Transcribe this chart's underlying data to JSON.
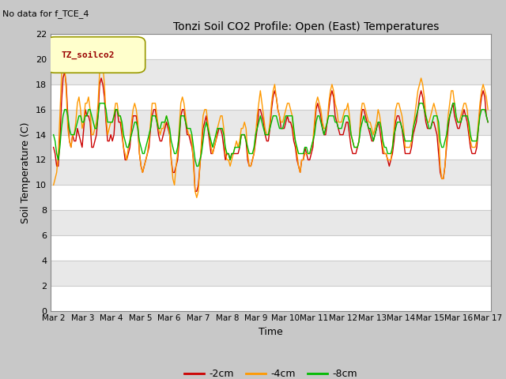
{
  "title": "Tonzi Soil CO2 Profile: Open (East) Temperatures",
  "subtitle": "No data for f_TCE_4",
  "ylabel": "Soil Temperature (C)",
  "xlabel": "Time",
  "legend_label": "TZ_soilco2",
  "ylim": [
    0,
    22
  ],
  "yticks": [
    0,
    2,
    4,
    6,
    8,
    10,
    12,
    14,
    16,
    18,
    20,
    22
  ],
  "series_labels": [
    "-2cm",
    "-4cm",
    "-8cm"
  ],
  "series_colors": [
    "#cc0000",
    "#ff9900",
    "#00bb00"
  ],
  "x_start": 2.0,
  "x_end": 17.0,
  "xtick_positions": [
    2,
    3,
    4,
    5,
    6,
    7,
    8,
    9,
    10,
    11,
    12,
    13,
    14,
    15,
    16,
    17
  ],
  "xtick_labels": [
    "Mar 2",
    "Mar 3",
    "Mar 4",
    "Mar 5",
    "Mar 6",
    "Mar 7",
    "Mar 8",
    "Mar 9",
    "Mar 10",
    "Mar 11",
    "Mar 12",
    "Mar 13",
    "Mar 14",
    "Mar 15",
    "Mar 16",
    "Mar 17"
  ],
  "band_color_light": "#f0f0f0",
  "band_color_dark": "#e0e0e0",
  "fig_bg": "#c8c8c8",
  "plot_bg": "#e8e8e8",
  "t2cm": [
    13.0,
    12.5,
    11.5,
    11.5,
    13.5,
    16.5,
    18.5,
    19.0,
    18.0,
    15.5,
    13.5,
    13.0,
    14.0,
    13.5,
    13.5,
    14.5,
    14.0,
    13.5,
    13.0,
    14.5,
    16.0,
    15.5,
    15.5,
    15.0,
    13.0,
    13.0,
    13.5,
    14.0,
    15.5,
    18.0,
    18.5,
    18.0,
    17.0,
    15.0,
    13.5,
    13.5,
    14.0,
    13.5,
    14.0,
    16.0,
    16.0,
    15.0,
    15.0,
    14.0,
    13.0,
    12.0,
    12.0,
    12.5,
    13.0,
    14.5,
    15.5,
    15.5,
    15.5,
    14.5,
    12.5,
    11.5,
    11.0,
    11.5,
    12.0,
    12.5,
    13.0,
    14.5,
    15.5,
    16.0,
    16.0,
    15.0,
    14.0,
    13.5,
    13.5,
    14.0,
    14.5,
    15.0,
    14.5,
    14.0,
    12.0,
    11.0,
    11.0,
    11.5,
    12.0,
    13.5,
    15.5,
    16.0,
    16.0,
    15.0,
    14.0,
    14.0,
    13.5,
    13.0,
    12.0,
    9.5,
    9.5,
    10.0,
    11.5,
    13.0,
    14.5,
    15.0,
    15.5,
    14.5,
    13.5,
    12.5,
    12.5,
    13.0,
    13.5,
    14.0,
    14.5,
    14.5,
    14.0,
    13.0,
    12.0,
    12.5,
    12.5,
    12.0,
    12.5,
    12.5,
    12.5,
    12.5,
    12.5,
    13.0,
    14.0,
    14.0,
    14.0,
    13.5,
    12.0,
    11.5,
    11.5,
    12.0,
    12.5,
    13.5,
    14.5,
    16.0,
    16.0,
    15.5,
    15.0,
    14.0,
    13.5,
    13.5,
    14.5,
    16.0,
    17.0,
    17.5,
    17.0,
    16.0,
    15.5,
    14.5,
    14.5,
    14.5,
    15.0,
    15.5,
    15.0,
    15.0,
    14.5,
    13.5,
    13.0,
    12.0,
    11.5,
    11.0,
    12.0,
    12.0,
    13.0,
    12.5,
    12.0,
    12.0,
    12.5,
    13.0,
    14.5,
    16.0,
    16.5,
    16.0,
    15.5,
    14.5,
    14.0,
    14.0,
    15.0,
    16.0,
    17.0,
    17.5,
    17.0,
    15.5,
    15.0,
    14.5,
    14.0,
    14.0,
    14.0,
    14.5,
    15.0,
    15.0,
    14.0,
    13.0,
    12.5,
    12.5,
    12.5,
    13.0,
    13.5,
    15.0,
    16.0,
    16.0,
    15.5,
    15.0,
    14.5,
    14.0,
    13.5,
    13.5,
    14.0,
    14.5,
    15.0,
    14.5,
    13.5,
    12.5,
    12.5,
    12.5,
    12.0,
    11.5,
    12.0,
    12.5,
    13.5,
    15.0,
    15.5,
    15.5,
    15.0,
    14.5,
    13.5,
    12.5,
    12.5,
    12.5,
    12.5,
    13.0,
    14.0,
    14.5,
    15.0,
    16.0,
    17.0,
    17.5,
    17.0,
    16.0,
    15.0,
    14.5,
    14.5,
    14.5,
    15.0,
    15.0,
    14.5,
    14.0,
    12.5,
    11.0,
    10.5,
    10.5,
    11.5,
    13.0,
    14.5,
    15.5,
    16.0,
    16.5,
    15.5,
    15.0,
    14.5,
    14.5,
    15.0,
    15.5,
    16.0,
    15.5,
    15.0,
    14.0,
    13.0,
    12.5,
    12.5,
    12.5,
    13.0,
    14.5,
    16.0,
    17.0,
    17.5,
    17.0,
    15.5,
    15.0
  ],
  "t4cm": [
    10.0,
    10.5,
    11.0,
    12.5,
    15.5,
    18.5,
    20.5,
    19.5,
    17.5,
    14.5,
    13.5,
    13.0,
    14.0,
    14.0,
    15.0,
    16.5,
    17.0,
    16.0,
    14.5,
    15.0,
    16.5,
    16.5,
    17.0,
    16.0,
    14.0,
    14.0,
    14.5,
    15.0,
    16.5,
    19.0,
    19.5,
    19.5,
    18.0,
    15.5,
    14.0,
    14.5,
    15.0,
    15.0,
    15.5,
    16.5,
    16.5,
    15.5,
    15.5,
    14.5,
    13.0,
    12.5,
    12.0,
    13.0,
    13.5,
    15.0,
    16.0,
    16.5,
    16.0,
    15.0,
    12.5,
    11.5,
    11.0,
    11.5,
    12.0,
    12.5,
    13.5,
    15.0,
    16.5,
    16.5,
    16.5,
    15.5,
    14.5,
    14.0,
    14.5,
    14.5,
    15.0,
    15.5,
    15.0,
    14.0,
    12.0,
    10.5,
    10.0,
    11.5,
    12.5,
    14.5,
    16.5,
    17.0,
    16.5,
    15.5,
    14.5,
    14.0,
    14.0,
    13.5,
    11.5,
    9.5,
    9.0,
    9.5,
    11.5,
    13.5,
    15.5,
    16.0,
    16.0,
    15.0,
    14.0,
    13.0,
    12.5,
    13.0,
    13.5,
    14.5,
    15.0,
    15.5,
    15.5,
    14.5,
    12.5,
    12.0,
    12.0,
    11.5,
    12.0,
    12.5,
    13.0,
    13.5,
    13.0,
    13.5,
    14.5,
    14.5,
    15.0,
    14.5,
    12.5,
    11.5,
    11.5,
    12.0,
    12.5,
    14.0,
    15.5,
    16.5,
    17.5,
    16.5,
    15.5,
    14.5,
    14.0,
    14.0,
    15.0,
    16.5,
    17.5,
    18.0,
    17.0,
    16.0,
    15.5,
    15.0,
    15.0,
    15.5,
    16.0,
    16.5,
    16.5,
    16.0,
    15.5,
    14.0,
    13.5,
    12.5,
    11.5,
    11.0,
    12.0,
    12.0,
    12.5,
    12.5,
    12.5,
    12.5,
    13.0,
    13.5,
    15.0,
    16.5,
    17.0,
    16.5,
    16.0,
    15.0,
    14.5,
    14.5,
    15.0,
    16.5,
    17.5,
    18.0,
    17.5,
    16.5,
    16.0,
    15.0,
    15.0,
    15.0,
    15.5,
    16.0,
    16.0,
    16.5,
    15.5,
    14.0,
    13.5,
    13.0,
    13.0,
    13.0,
    13.5,
    15.5,
    16.5,
    16.5,
    16.0,
    15.5,
    15.0,
    15.0,
    14.5,
    14.0,
    14.5,
    15.0,
    16.0,
    15.5,
    14.5,
    13.0,
    12.5,
    12.5,
    12.0,
    12.0,
    12.0,
    13.0,
    14.5,
    16.0,
    16.5,
    16.5,
    16.0,
    15.5,
    14.5,
    13.0,
    13.0,
    13.0,
    13.0,
    13.5,
    14.5,
    15.5,
    16.5,
    17.5,
    18.0,
    18.5,
    18.0,
    17.0,
    15.5,
    15.0,
    15.0,
    15.5,
    16.0,
    16.5,
    16.0,
    15.5,
    14.0,
    11.5,
    10.5,
    10.5,
    11.5,
    13.5,
    15.5,
    16.5,
    17.5,
    17.5,
    16.5,
    15.5,
    15.0,
    15.0,
    15.5,
    16.0,
    16.5,
    16.5,
    16.0,
    14.5,
    13.5,
    13.0,
    13.0,
    13.0,
    13.5,
    15.0,
    16.5,
    17.5,
    18.0,
    17.5,
    17.0,
    16.0
  ],
  "t8cm": [
    14.0,
    13.5,
    12.5,
    12.0,
    13.0,
    14.5,
    15.5,
    16.0,
    16.0,
    15.5,
    14.5,
    14.0,
    14.0,
    14.0,
    14.5,
    15.0,
    15.5,
    15.5,
    15.0,
    15.0,
    15.5,
    15.5,
    16.0,
    16.0,
    15.5,
    15.0,
    14.5,
    14.5,
    15.5,
    16.5,
    16.5,
    16.5,
    16.5,
    16.0,
    15.0,
    15.0,
    15.0,
    15.0,
    15.5,
    16.0,
    16.0,
    15.5,
    15.5,
    15.0,
    14.0,
    13.5,
    13.0,
    13.0,
    13.5,
    14.0,
    14.5,
    15.0,
    15.0,
    14.5,
    13.5,
    13.0,
    12.5,
    12.5,
    13.0,
    13.5,
    14.0,
    14.5,
    15.5,
    15.5,
    15.5,
    15.0,
    14.5,
    14.5,
    15.0,
    15.0,
    15.0,
    15.5,
    15.0,
    14.5,
    13.5,
    13.0,
    12.5,
    12.5,
    13.0,
    14.0,
    15.5,
    15.5,
    15.5,
    15.0,
    14.5,
    14.5,
    14.5,
    14.0,
    13.0,
    12.0,
    11.5,
    11.5,
    12.0,
    12.5,
    13.5,
    14.5,
    15.0,
    14.5,
    14.0,
    13.5,
    13.0,
    13.5,
    14.0,
    14.5,
    14.5,
    14.5,
    14.5,
    14.0,
    13.0,
    12.5,
    12.5,
    12.0,
    12.5,
    12.5,
    13.0,
    13.0,
    13.0,
    13.0,
    14.0,
    14.0,
    14.0,
    13.5,
    13.0,
    12.5,
    12.5,
    12.5,
    13.0,
    14.0,
    14.5,
    15.0,
    15.5,
    15.0,
    14.5,
    14.0,
    14.0,
    14.0,
    14.5,
    15.0,
    15.5,
    15.5,
    15.5,
    15.0,
    14.5,
    14.5,
    14.5,
    15.0,
    15.5,
    15.5,
    15.5,
    15.5,
    15.5,
    14.5,
    13.5,
    13.0,
    12.5,
    12.5,
    12.5,
    12.5,
    13.0,
    13.0,
    12.5,
    12.5,
    13.0,
    13.5,
    14.0,
    15.0,
    15.5,
    15.5,
    15.0,
    14.5,
    14.0,
    14.5,
    15.0,
    15.5,
    15.5,
    15.5,
    15.5,
    15.0,
    15.0,
    14.5,
    14.5,
    14.5,
    15.0,
    15.5,
    15.5,
    15.5,
    15.0,
    14.0,
    13.5,
    13.0,
    13.0,
    13.0,
    13.5,
    14.5,
    15.0,
    15.5,
    15.0,
    15.0,
    14.5,
    14.5,
    14.0,
    13.5,
    14.0,
    14.5,
    15.0,
    15.0,
    14.5,
    13.5,
    13.0,
    13.0,
    12.5,
    12.5,
    12.5,
    13.0,
    14.0,
    14.5,
    15.0,
    15.0,
    15.0,
    14.5,
    14.0,
    13.5,
    13.5,
    13.5,
    13.5,
    13.5,
    14.5,
    15.0,
    15.5,
    16.0,
    16.5,
    16.5,
    16.5,
    16.0,
    15.5,
    15.0,
    14.5,
    14.5,
    15.0,
    15.5,
    15.5,
    15.5,
    15.0,
    13.5,
    13.0,
    13.0,
    13.5,
    14.0,
    15.0,
    15.5,
    16.0,
    16.5,
    16.5,
    15.5,
    15.0,
    15.0,
    15.0,
    15.5,
    15.5,
    15.5,
    15.5,
    15.0,
    14.0,
    13.5,
    13.5,
    13.5,
    13.5,
    14.5,
    15.5,
    16.0,
    16.0,
    16.0,
    15.5,
    15.0
  ]
}
